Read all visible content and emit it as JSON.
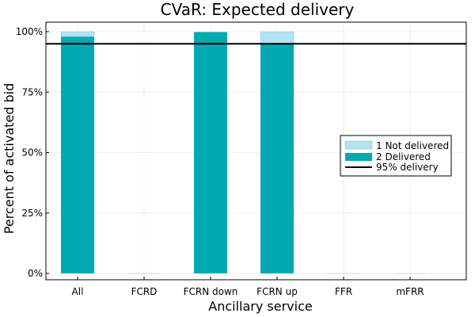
{
  "chart_data": {
    "type": "bar",
    "stacked": true,
    "title": "CVaR: Expected delivery",
    "xlabel": "Ancillary service",
    "ylabel": "Percent of activated bid",
    "categories": [
      "All",
      "FCRD",
      "FCRN down",
      "FCRN up",
      "FFR",
      "mFRR"
    ],
    "ylim": [
      0,
      1.0
    ],
    "yticks": [
      0,
      0.25,
      0.5,
      0.75,
      1.0
    ],
    "ytick_labels": [
      "0%",
      "25%",
      "50%",
      "75%",
      "100%"
    ],
    "series": [
      {
        "name": "2 Delivered",
        "color": "#00a9b0",
        "values": [
          0.98,
          0.0,
          1.0,
          0.95,
          0.0,
          0.0
        ]
      },
      {
        "name": "1 Not delivered",
        "color": "#b3e2f2",
        "values": [
          0.02,
          0.0,
          0.0,
          0.05,
          0.0,
          0.0
        ]
      }
    ],
    "reference_line": {
      "name": "95% delivery",
      "value": 0.95,
      "color": "#000000"
    },
    "legend": {
      "placement": "right-middle",
      "entries": [
        "1 Not delivered",
        "2 Delivered",
        "95% delivery"
      ]
    },
    "grid": true
  }
}
